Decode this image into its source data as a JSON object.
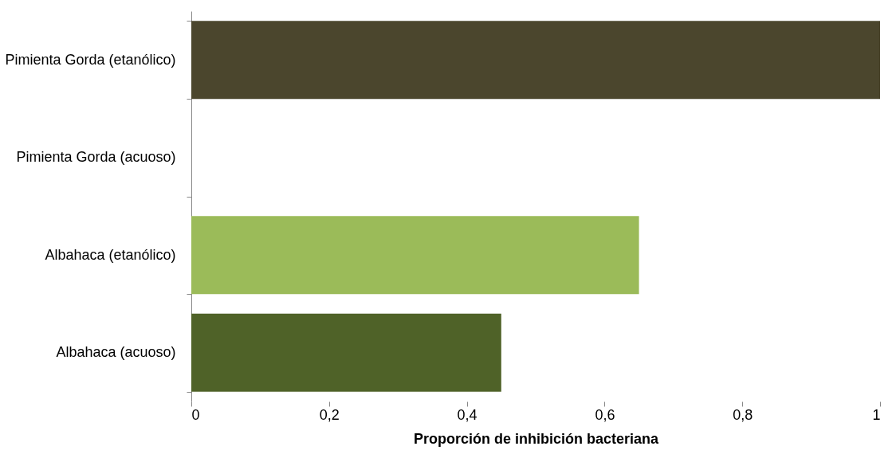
{
  "chart_data": {
    "type": "bar",
    "orientation": "horizontal",
    "xlabel": "Proporción de inhibición bacteriana",
    "categories": [
      "Pimienta Gorda (etanólico)",
      "Pimienta Gorda (acuoso)",
      "Albahaca (etanólico)",
      "Albahaca (acuoso)"
    ],
    "values": [
      1,
      0,
      0.65,
      0.45
    ],
    "colors": [
      "#4b462d",
      "#9bbb59",
      "#9bbb59",
      "#4f6228"
    ],
    "xlim": [
      0,
      1
    ],
    "xticks": [
      0,
      {
        "value": 0.2,
        "label": "0,2"
      },
      {
        "value": 0.4,
        "label": "0,4"
      },
      {
        "value": 0.6,
        "label": "0,6"
      },
      {
        "value": 0.8,
        "label": "0,8"
      },
      1
    ],
    "grid": false
  }
}
